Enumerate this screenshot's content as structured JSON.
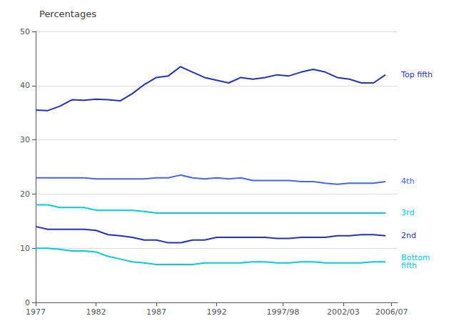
{
  "chart_data": {
    "type": "line",
    "title": "Percentages",
    "x": [
      1977,
      1978,
      1979,
      1980,
      1981,
      1982,
      1983,
      1984,
      1985,
      1986,
      1987,
      1988,
      1989,
      1990,
      1991,
      1992,
      1993,
      1994,
      1995,
      1996,
      1997,
      1998,
      1999,
      2000,
      2001,
      2002,
      2003,
      2004,
      2005,
      2006
    ],
    "xlim": [
      1977,
      2007
    ],
    "xticks": [
      1977,
      1982,
      1987,
      1992,
      {
        "value": 1997.5,
        "label": "1997/98"
      },
      {
        "value": 2002.5,
        "label": "2002/03"
      },
      {
        "value": 2006.5,
        "label": "2006/07"
      }
    ],
    "ylim": [
      0,
      50
    ],
    "yticks": [
      0,
      10,
      20,
      30,
      40,
      50
    ],
    "grid": true,
    "series": [
      {
        "name": "Top fifth",
        "color": "#2233bb",
        "values": [
          35.5,
          35.4,
          36.2,
          37.4,
          37.3,
          37.5,
          37.4,
          37.2,
          38.5,
          40.2,
          41.5,
          41.8,
          43.5,
          42.5,
          41.5,
          41.0,
          40.5,
          41.5,
          41.2,
          41.5,
          42.0,
          41.8,
          42.5,
          43.0,
          42.5,
          41.5,
          41.2,
          40.5,
          40.5,
          42.0
        ]
      },
      {
        "name": "4th",
        "color": "#4466ee",
        "values": [
          23.0,
          23.0,
          23.0,
          23.0,
          23.0,
          22.8,
          22.8,
          22.8,
          22.8,
          22.8,
          23.0,
          23.0,
          23.5,
          23.0,
          22.8,
          23.0,
          22.8,
          23.0,
          22.5,
          22.5,
          22.5,
          22.5,
          22.3,
          22.3,
          22.0,
          21.8,
          22.0,
          22.0,
          22.0,
          22.3
        ]
      },
      {
        "name": "3rd",
        "color": "#00ccdd",
        "values": [
          18.0,
          18.0,
          17.5,
          17.5,
          17.5,
          17.0,
          17.0,
          17.0,
          17.0,
          16.8,
          16.5,
          16.5,
          16.5,
          16.5,
          16.5,
          16.5,
          16.5,
          16.5,
          16.5,
          16.5,
          16.5,
          16.5,
          16.5,
          16.5,
          16.5,
          16.5,
          16.5,
          16.5,
          16.5,
          16.5
        ]
      },
      {
        "name": "2nd",
        "color": "#2233bb",
        "values": [
          14.0,
          13.5,
          13.5,
          13.5,
          13.5,
          13.3,
          12.5,
          12.3,
          12.0,
          11.5,
          11.5,
          11.0,
          11.0,
          11.5,
          11.5,
          12.0,
          12.0,
          12.0,
          12.0,
          12.0,
          11.8,
          11.8,
          12.0,
          12.0,
          12.0,
          12.3,
          12.3,
          12.5,
          12.5,
          12.3
        ]
      },
      {
        "name": "Bottom\nfifth",
        "color": "#00ccdd",
        "values": [
          10.0,
          10.0,
          9.8,
          9.5,
          9.5,
          9.3,
          8.5,
          8.0,
          7.5,
          7.3,
          7.0,
          7.0,
          7.0,
          7.0,
          7.3,
          7.3,
          7.3,
          7.3,
          7.5,
          7.5,
          7.3,
          7.3,
          7.5,
          7.5,
          7.3,
          7.3,
          7.3,
          7.3,
          7.5,
          7.5
        ]
      }
    ]
  }
}
